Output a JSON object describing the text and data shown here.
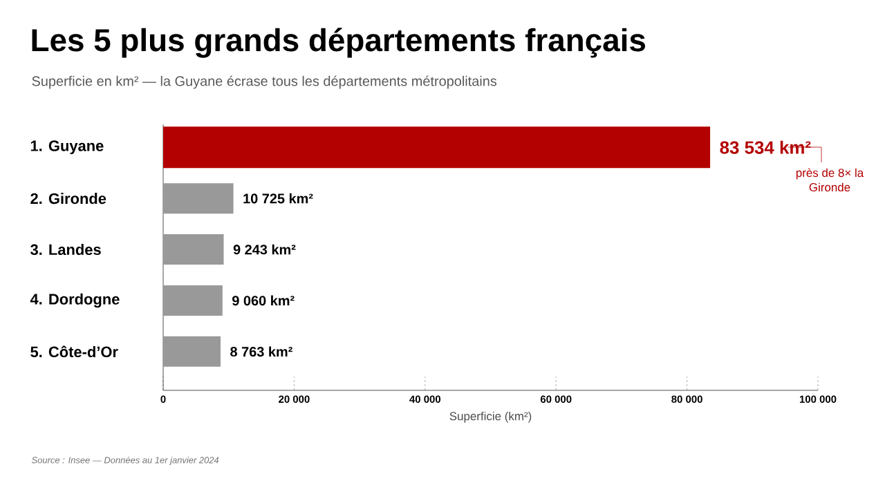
{
  "chart_data": {
    "type": "bar",
    "orientation": "horizontal",
    "title": "Les 5 plus grands départements français",
    "subtitle": "Superficie en km² — la Guyane écrase tous les départements métropolitains",
    "xlabel": "Superficie (km²)",
    "categories": [
      "1. Guyane",
      "2. Gironde",
      "3. Landes",
      "4. Dordogne",
      "5. Côte-d’Or"
    ],
    "values": [
      83534,
      10725,
      9243,
      9060,
      8763
    ],
    "colors": [
      "#b30000",
      "#999999",
      "#999999",
      "#999999",
      "#999999"
    ],
    "value_labels": [
      "83 534 km²",
      "10 725 km²",
      "9 243 km²",
      "9 060 km²",
      "8 763 km²"
    ],
    "xlim": [
      0,
      100000
    ],
    "xticks": [
      0,
      {
        "value": 20000,
        "label": "20 000"
      },
      {
        "value": 40000,
        "label": "40 000"
      },
      {
        "value": 60000,
        "label": "60 000"
      },
      {
        "value": 80000,
        "label": "80 000"
      },
      {
        "value": 100000,
        "label": "100 000"
      }
    ],
    "annotations": [
      "près de 8× la Gironde",
      "Source : Insee — Données au 1er janvier 2024"
    ],
    "grid": false
  }
}
